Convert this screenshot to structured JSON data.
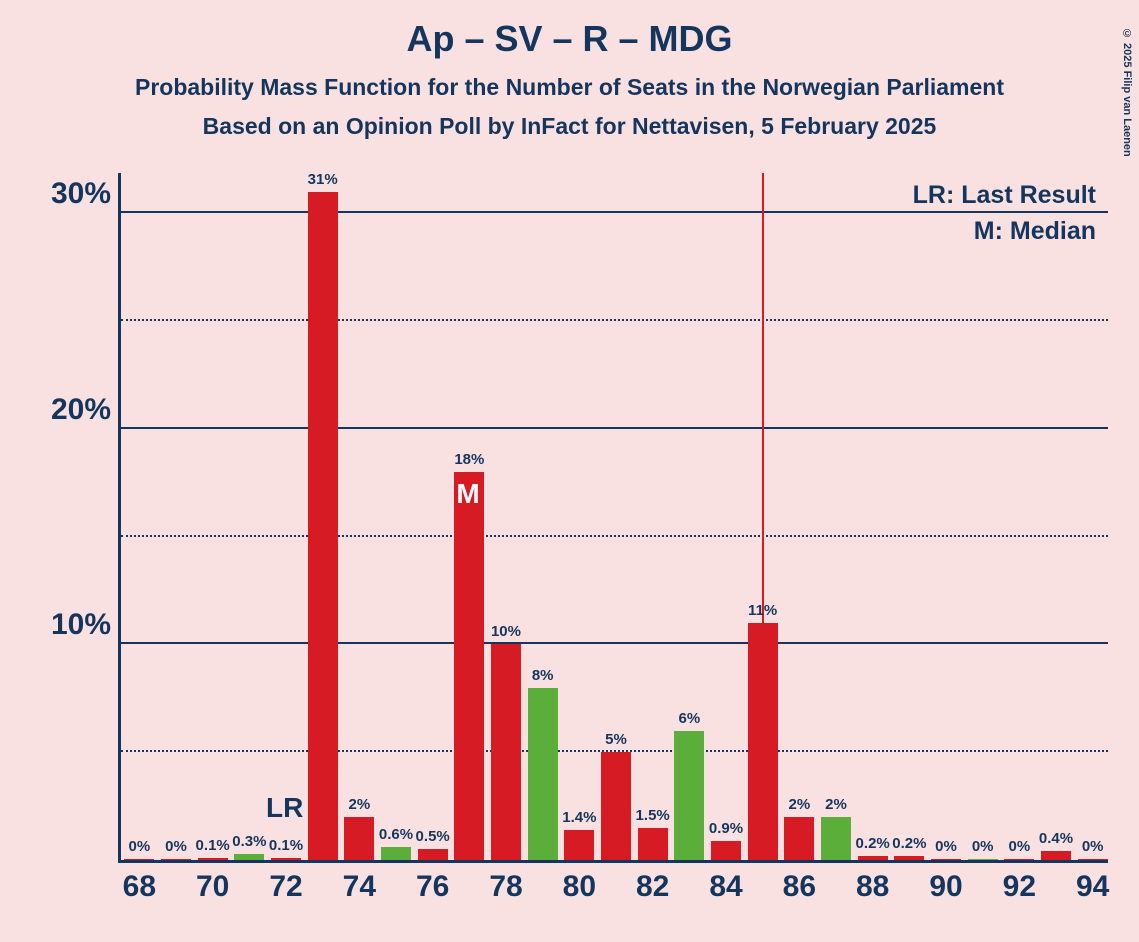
{
  "title": "Ap – SV – R – MDG",
  "subtitle1": "Probability Mass Function for the Number of Seats in the Norwegian Parliament",
  "subtitle2": "Based on an Opinion Poll by InFact for Nettavisen, 5 February 2025",
  "copyright": "© 2025 Filip van Laenen",
  "legend": {
    "lr": "LR: Last Result",
    "m": "M: Median"
  },
  "chart": {
    "type": "bar",
    "background_color": "#fae1e1",
    "axis_color": "#14365e",
    "text_color": "#14365e",
    "red": "#d71b24",
    "green": "#5cae3a",
    "ylim": [
      0,
      32
    ],
    "y_major_ticks": [
      10,
      20,
      30
    ],
    "y_minor_ticks": [
      5,
      15,
      25
    ],
    "xlim": [
      67.5,
      94.5
    ],
    "x_ticks": [
      68,
      70,
      72,
      74,
      76,
      78,
      80,
      82,
      84,
      86,
      88,
      90,
      92,
      94
    ],
    "bar_width": 0.82,
    "last_result_x": 72,
    "median_x": 77,
    "majority_line_x": 85,
    "bars": [
      {
        "x": 68,
        "value": 0,
        "label": "0%",
        "color": "red"
      },
      {
        "x": 69,
        "value": 0,
        "label": "0%",
        "color": "red"
      },
      {
        "x": 70,
        "value": 0.1,
        "label": "0.1%",
        "color": "red"
      },
      {
        "x": 71,
        "value": 0.3,
        "label": "0.3%",
        "color": "green"
      },
      {
        "x": 72,
        "value": 0.1,
        "label": "0.1%",
        "color": "red"
      },
      {
        "x": 73,
        "value": 31,
        "label": "31%",
        "color": "red"
      },
      {
        "x": 74,
        "value": 2,
        "label": "2%",
        "color": "red"
      },
      {
        "x": 75,
        "value": 0.6,
        "label": "0.6%",
        "color": "green"
      },
      {
        "x": 76,
        "value": 0.5,
        "label": "0.5%",
        "color": "red"
      },
      {
        "x": 77,
        "value": 18,
        "label": "18%",
        "color": "red"
      },
      {
        "x": 78,
        "value": 10,
        "label": "10%",
        "color": "red"
      },
      {
        "x": 79,
        "value": 8,
        "label": "8%",
        "color": "green"
      },
      {
        "x": 80,
        "value": 1.4,
        "label": "1.4%",
        "color": "red"
      },
      {
        "x": 81,
        "value": 5,
        "label": "5%",
        "color": "red"
      },
      {
        "x": 82,
        "value": 1.5,
        "label": "1.5%",
        "color": "red"
      },
      {
        "x": 83,
        "value": 6,
        "label": "6%",
        "color": "green"
      },
      {
        "x": 84,
        "value": 0.9,
        "label": "0.9%",
        "color": "red"
      },
      {
        "x": 85,
        "value": 11,
        "label": "11%",
        "color": "red"
      },
      {
        "x": 86,
        "value": 2,
        "label": "2%",
        "color": "red"
      },
      {
        "x": 87,
        "value": 2,
        "label": "2%",
        "color": "green"
      },
      {
        "x": 88,
        "value": 0.2,
        "label": "0.2%",
        "color": "red"
      },
      {
        "x": 89,
        "value": 0.2,
        "label": "0.2%",
        "color": "red"
      },
      {
        "x": 90,
        "value": 0,
        "label": "0%",
        "color": "red"
      },
      {
        "x": 91,
        "value": 0,
        "label": "0%",
        "color": "green"
      },
      {
        "x": 92,
        "value": 0,
        "label": "0%",
        "color": "red"
      },
      {
        "x": 93,
        "value": 0.4,
        "label": "0.4%",
        "color": "red"
      },
      {
        "x": 94,
        "value": 0,
        "label": "0%",
        "color": "red"
      }
    ],
    "lr_label": "LR",
    "m_label": "M"
  }
}
